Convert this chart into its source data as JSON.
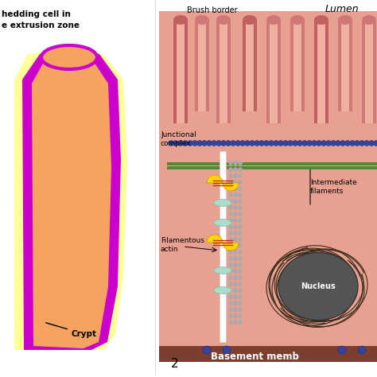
{
  "bg_color": "#ffffff",
  "left_panel": {
    "title_lines": [
      "hedding cell in",
      "e extrusion zone"
    ],
    "cell_outer_color": "#FFFF99",
    "cell_membrane_color": "#CC00CC",
    "cell_inner_color": "#F4A460",
    "crypt_label": "Crypt",
    "panel_bg": "#ffffff"
  },
  "right_panel": {
    "lumen_label": "Lumen",
    "brush_border_label": "Brush border",
    "junctional_label": "Junctional\ncomplex",
    "intermediate_label": "Intermediate\nfilaments",
    "filamentous_label": "Filamentous\nactin",
    "nucleus_label": "Nucleus",
    "basement_label": "Basement memb",
    "epithelium_color": "#E8A090",
    "villus_color": "#D07070",
    "junction_blue_color": "#4466BB",
    "junction_green_color": "#558833",
    "actin_color": "#FFFFFF",
    "nucleus_color": "#555555",
    "basement_color": "#7B3F2F",
    "figure_number": "2"
  }
}
